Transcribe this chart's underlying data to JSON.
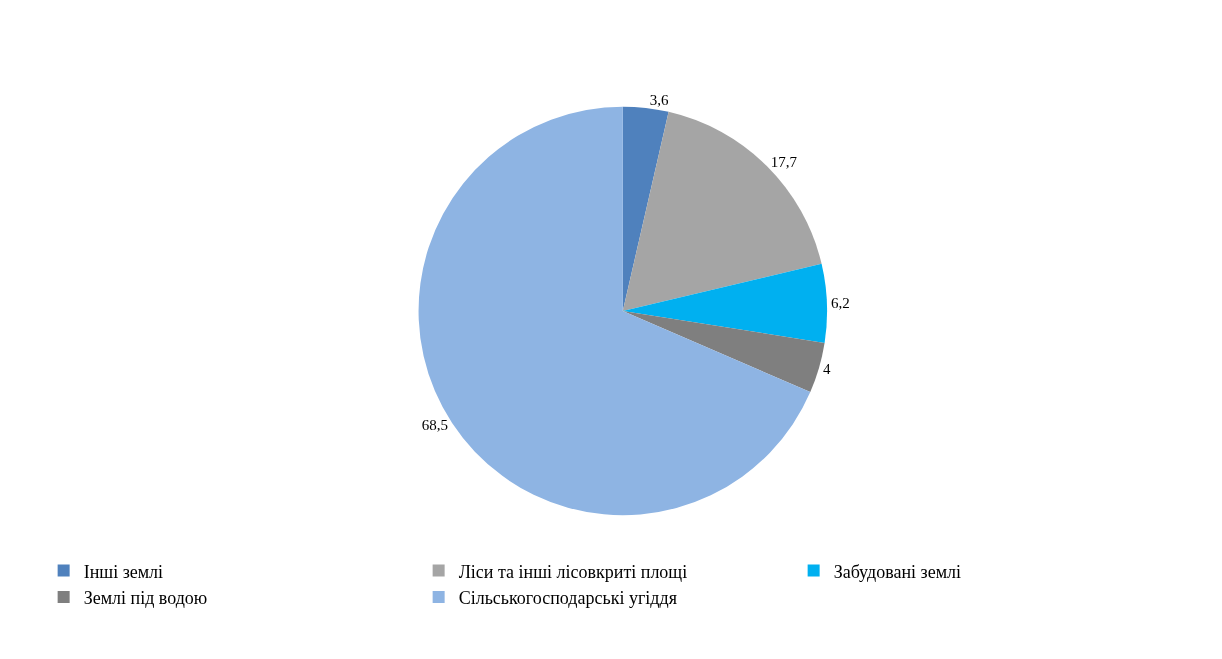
{
  "chart_data": {
    "type": "pie",
    "categories": [
      "Інші землі",
      "Ліси та інші лісовкриті площі",
      "Забудовані землі",
      "Землі під водою",
      "Сільськогосподарські угіддя"
    ],
    "values": [
      3.6,
      17.7,
      6.2,
      4,
      68.5
    ],
    "value_labels": [
      "3,6",
      "17,7",
      "6,2",
      "4",
      "68,5"
    ],
    "colors": [
      "#4f81bd",
      "#a5a5a5",
      "#00b0f0",
      "#7f7f7f",
      "#8eb4e3"
    ],
    "legend": "bottom"
  }
}
